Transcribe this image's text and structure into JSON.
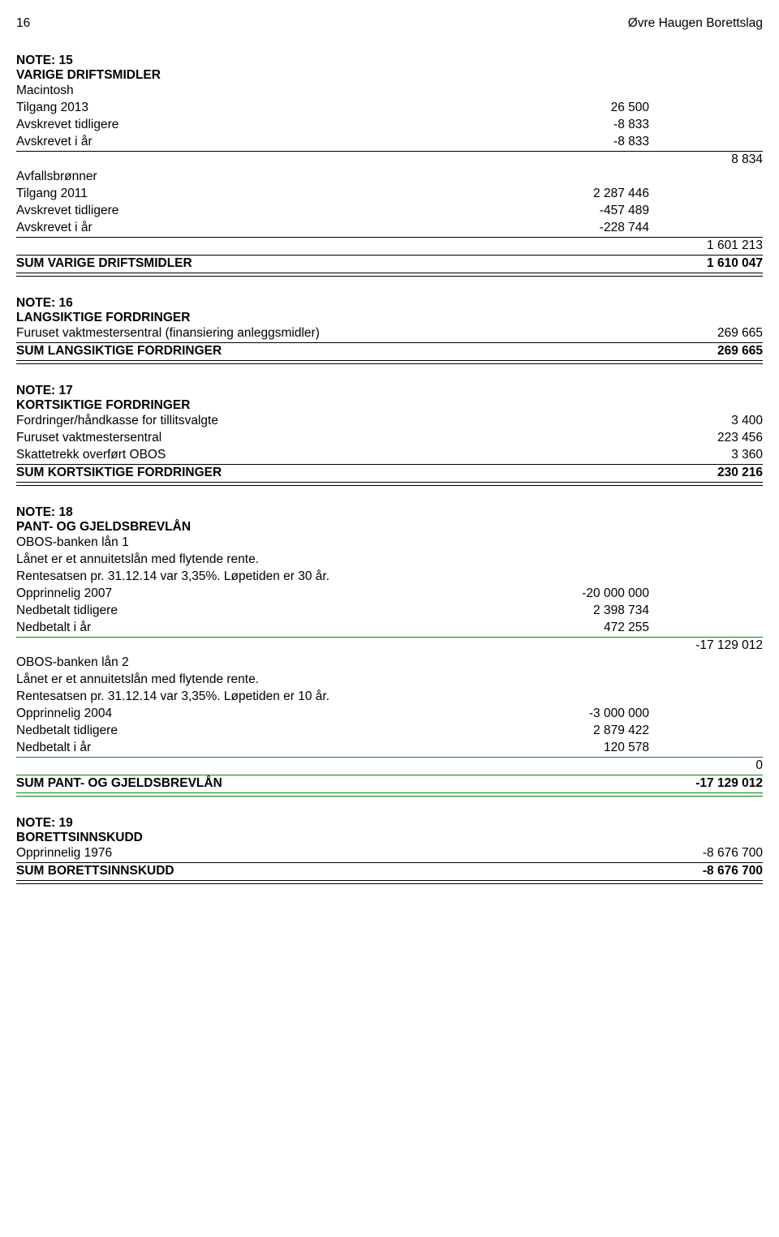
{
  "header": {
    "page_number": "16",
    "doc_title": "Øvre Haugen Borettslag"
  },
  "note15": {
    "title_line1": "NOTE: 15",
    "title_line2": "VARIGE DRIFTSMIDLER",
    "macintosh": {
      "name": "Macintosh",
      "tilgang": {
        "label": "Tilgang 2013",
        "value": "26 500"
      },
      "avskrevet_tidligere": {
        "label": "Avskrevet tidligere",
        "value": "-8 833"
      },
      "avskrevet_iar": {
        "label": "Avskrevet i år",
        "value": "-8 833"
      },
      "subtotal": "8 834"
    },
    "avfallsbronner": {
      "name": "Avfallsbrønner",
      "tilgang": {
        "label": "Tilgang 2011",
        "value": "2 287 446"
      },
      "avskrevet_tidligere": {
        "label": "Avskrevet tidligere",
        "value": "-457 489"
      },
      "avskrevet_iar": {
        "label": "Avskrevet i år",
        "value": "-228 744"
      },
      "subtotal": "1 601 213"
    },
    "sum": {
      "label": "SUM VARIGE DRIFTSMIDLER",
      "value": "1 610 047"
    }
  },
  "note16": {
    "title_line1": "NOTE: 16",
    "title_line2": "LANGSIKTIGE FORDRINGER",
    "row1": {
      "label": "Furuset vaktmestersentral (finansiering anleggsmidler)",
      "value": "269 665"
    },
    "sum": {
      "label": "SUM LANGSIKTIGE FORDRINGER",
      "value": "269 665"
    }
  },
  "note17": {
    "title_line1": "NOTE: 17",
    "title_line2": "KORTSIKTIGE FORDRINGER",
    "row1": {
      "label": "Fordringer/håndkasse for tillitsvalgte",
      "value": "3 400"
    },
    "row2": {
      "label": "Furuset vaktmestersentral",
      "value": "223 456"
    },
    "row3": {
      "label": "Skattetrekk overført OBOS",
      "value": "3 360"
    },
    "sum": {
      "label": "SUM KORTSIKTIGE FORDRINGER",
      "value": "230 216"
    }
  },
  "note18": {
    "title_line1": "NOTE: 18",
    "title_line2": "PANT- OG GJELDSBREVLÅN",
    "loan1": {
      "name": "OBOS-banken lån 1",
      "desc1": "Lånet er et annuitetslån med flytende rente.",
      "desc2": "Rentesatsen pr. 31.12.14 var 3,35%. Løpetiden er 30 år.",
      "row1": {
        "label": "Opprinnelig 2007",
        "value": "-20 000 000"
      },
      "row2": {
        "label": "Nedbetalt tidligere",
        "value": "2 398 734"
      },
      "row3": {
        "label": "Nedbetalt i år",
        "value": "472 255"
      },
      "subtotal": "-17 129 012"
    },
    "loan2": {
      "name": "OBOS-banken lån 2",
      "desc1": "Lånet er et annuitetslån med flytende rente.",
      "desc2": "Rentesatsen pr. 31.12.14 var 3,35%. Løpetiden er 10 år.",
      "row1": {
        "label": "Opprinnelig 2004",
        "value": "-3 000 000"
      },
      "row2": {
        "label": "Nedbetalt tidligere",
        "value": "2 879 422"
      },
      "row3": {
        "label": "Nedbetalt i år",
        "value": "120 578"
      },
      "subtotal": "0"
    },
    "sum": {
      "label": "SUM PANT- OG GJELDSBREVLÅN",
      "value": "-17 129 012"
    }
  },
  "note19": {
    "title_line1": "NOTE: 19",
    "title_line2": "BORETTSINNSKUDD",
    "row1": {
      "label": "Opprinnelig 1976",
      "value": "-8 676 700"
    },
    "sum": {
      "label": "SUM BORETTSINNSKUDD",
      "value": "-8 676 700"
    }
  }
}
